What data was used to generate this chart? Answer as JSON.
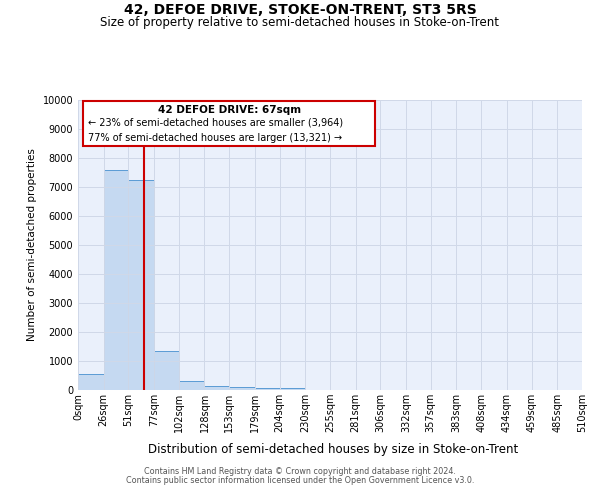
{
  "title": "42, DEFOE DRIVE, STOKE-ON-TRENT, ST3 5RS",
  "subtitle": "Size of property relative to semi-detached houses in Stoke-on-Trent",
  "xlabel": "Distribution of semi-detached houses by size in Stoke-on-Trent",
  "ylabel": "Number of semi-detached properties",
  "footer1": "Contains HM Land Registry data © Crown copyright and database right 2024.",
  "footer2": "Contains public sector information licensed under the Open Government Licence v3.0.",
  "annotation_title": "42 DEFOE DRIVE: 67sqm",
  "annotation_line1": "← 23% of semi-detached houses are smaller (3,964)",
  "annotation_line2": "77% of semi-detached houses are larger (13,321) →",
  "property_size": 67,
  "bin_edges": [
    0,
    26,
    51,
    77,
    102,
    128,
    153,
    179,
    204,
    230,
    255,
    281,
    306,
    332,
    357,
    383,
    408,
    434,
    459,
    485,
    510
  ],
  "bin_counts": [
    550,
    7600,
    7250,
    1350,
    300,
    150,
    100,
    80,
    60,
    0,
    0,
    0,
    0,
    0,
    0,
    0,
    0,
    0,
    0,
    0
  ],
  "bar_color": "#c5d9f1",
  "bar_edge_color": "#5b9bd5",
  "vline_color": "#cc0000",
  "vline_x": 67,
  "ylim": [
    0,
    10000
  ],
  "yticks": [
    0,
    1000,
    2000,
    3000,
    4000,
    5000,
    6000,
    7000,
    8000,
    9000,
    10000
  ],
  "grid_color": "#d0d8e8",
  "bg_color": "#eaf0fb",
  "annotation_box_color": "#cc0000",
  "title_fontsize": 10,
  "subtitle_fontsize": 8.5,
  "xlabel_fontsize": 8.5,
  "ylabel_fontsize": 7.5,
  "tick_fontsize": 7,
  "annotation_fontsize": 7,
  "footer_fontsize": 5.8
}
